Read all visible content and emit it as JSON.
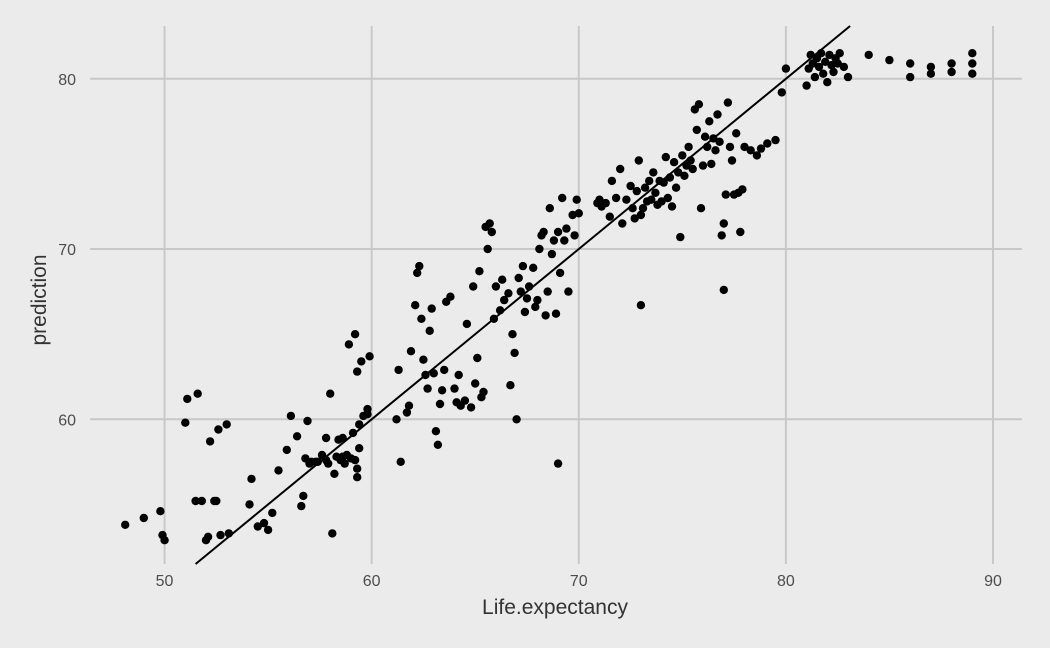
{
  "chart_data": {
    "type": "scatter",
    "xlabel": "Life.expectancy",
    "ylabel": "prediction",
    "xlim": [
      46.4,
      91.4
    ],
    "ylim": [
      51.5,
      83.1
    ],
    "xticks": [
      50,
      60,
      70,
      80,
      90
    ],
    "yticks": [
      60,
      70,
      80
    ],
    "grid": true,
    "reference_line": {
      "slope": 1,
      "intercept": 0
    },
    "colors": {
      "background": "#ebebeb",
      "grid": "#c8c8c8",
      "points": "#000000",
      "line": "#000000"
    },
    "points": [
      [
        48.1,
        53.8
      ],
      [
        49.0,
        54.2
      ],
      [
        49.8,
        54.6
      ],
      [
        49.9,
        53.2
      ],
      [
        50.0,
        52.9
      ],
      [
        51.0,
        59.8
      ],
      [
        51.1,
        61.2
      ],
      [
        51.5,
        55.2
      ],
      [
        51.6,
        61.5
      ],
      [
        51.8,
        55.2
      ],
      [
        52.0,
        52.9
      ],
      [
        52.1,
        53.1
      ],
      [
        52.2,
        58.7
      ],
      [
        52.4,
        55.2
      ],
      [
        52.5,
        55.2
      ],
      [
        52.6,
        59.4
      ],
      [
        52.7,
        53.2
      ],
      [
        53.0,
        59.7
      ],
      [
        53.1,
        53.3
      ],
      [
        54.1,
        55.0
      ],
      [
        54.2,
        56.5
      ],
      [
        54.5,
        53.7
      ],
      [
        54.8,
        53.9
      ],
      [
        55.0,
        53.5
      ],
      [
        55.2,
        54.5
      ],
      [
        55.5,
        57.0
      ],
      [
        55.9,
        58.2
      ],
      [
        56.1,
        60.2
      ],
      [
        56.4,
        59.0
      ],
      [
        56.6,
        54.9
      ],
      [
        56.7,
        55.5
      ],
      [
        56.8,
        57.7
      ],
      [
        56.9,
        59.9
      ],
      [
        57.0,
        57.4
      ],
      [
        57.1,
        57.5
      ],
      [
        57.3,
        57.5
      ],
      [
        57.4,
        57.5
      ],
      [
        57.6,
        57.9
      ],
      [
        57.8,
        58.9
      ],
      [
        57.8,
        57.6
      ],
      [
        57.9,
        57.4
      ],
      [
        58.0,
        61.5
      ],
      [
        58.1,
        53.3
      ],
      [
        58.2,
        56.8
      ],
      [
        58.3,
        57.8
      ],
      [
        58.4,
        58.8
      ],
      [
        58.5,
        57.6
      ],
      [
        58.6,
        57.8
      ],
      [
        58.6,
        58.9
      ],
      [
        58.7,
        57.4
      ],
      [
        58.8,
        57.9
      ],
      [
        58.9,
        64.4
      ],
      [
        59.0,
        57.7
      ],
      [
        59.1,
        59.2
      ],
      [
        59.2,
        65.0
      ],
      [
        59.2,
        57.6
      ],
      [
        59.3,
        57.1
      ],
      [
        59.3,
        56.6
      ],
      [
        59.4,
        59.7
      ],
      [
        59.4,
        58.3
      ],
      [
        59.5,
        63.4
      ],
      [
        59.6,
        60.2
      ],
      [
        59.8,
        60.6
      ],
      [
        59.9,
        63.7
      ],
      [
        59.3,
        62.8
      ],
      [
        59.8,
        60.3
      ],
      [
        61.2,
        60.0
      ],
      [
        61.3,
        62.9
      ],
      [
        61.4,
        57.5
      ],
      [
        61.7,
        60.4
      ],
      [
        61.8,
        60.8
      ],
      [
        61.9,
        64.0
      ],
      [
        62.1,
        66.7
      ],
      [
        62.2,
        68.6
      ],
      [
        62.3,
        69.0
      ],
      [
        62.4,
        65.9
      ],
      [
        62.5,
        63.5
      ],
      [
        62.6,
        62.6
      ],
      [
        62.7,
        61.8
      ],
      [
        62.8,
        65.2
      ],
      [
        62.9,
        66.5
      ],
      [
        63.0,
        62.7
      ],
      [
        63.1,
        59.3
      ],
      [
        63.2,
        58.5
      ],
      [
        63.3,
        60.9
      ],
      [
        63.4,
        61.7
      ],
      [
        63.5,
        62.9
      ],
      [
        63.6,
        66.9
      ],
      [
        63.8,
        67.2
      ],
      [
        64.0,
        61.8
      ],
      [
        64.1,
        61.0
      ],
      [
        64.2,
        62.6
      ],
      [
        64.3,
        60.8
      ],
      [
        64.5,
        61.1
      ],
      [
        64.6,
        65.6
      ],
      [
        64.8,
        60.7
      ],
      [
        64.9,
        67.8
      ],
      [
        65.0,
        62.1
      ],
      [
        65.1,
        63.6
      ],
      [
        65.2,
        68.7
      ],
      [
        65.3,
        61.3
      ],
      [
        65.4,
        61.6
      ],
      [
        65.5,
        71.3
      ],
      [
        65.6,
        70.0
      ],
      [
        65.7,
        71.5
      ],
      [
        65.8,
        71.0
      ],
      [
        65.9,
        65.9
      ],
      [
        66.0,
        67.8
      ],
      [
        66.2,
        66.4
      ],
      [
        66.3,
        68.2
      ],
      [
        66.4,
        67.0
      ],
      [
        66.6,
        67.4
      ],
      [
        66.7,
        62.0
      ],
      [
        66.8,
        65.0
      ],
      [
        66.9,
        63.9
      ],
      [
        67.0,
        60.0
      ],
      [
        67.1,
        68.3
      ],
      [
        67.2,
        67.5
      ],
      [
        67.3,
        69.0
      ],
      [
        67.4,
        66.3
      ],
      [
        67.5,
        67.1
      ],
      [
        67.6,
        67.8
      ],
      [
        67.8,
        68.9
      ],
      [
        67.9,
        66.6
      ],
      [
        68.0,
        67.0
      ],
      [
        68.1,
        70.0
      ],
      [
        68.2,
        70.8
      ],
      [
        68.3,
        71.0
      ],
      [
        68.4,
        66.1
      ],
      [
        68.5,
        67.5
      ],
      [
        68.6,
        72.4
      ],
      [
        68.7,
        69.7
      ],
      [
        68.8,
        70.5
      ],
      [
        68.9,
        66.2
      ],
      [
        69.0,
        71.0
      ],
      [
        69.1,
        68.6
      ],
      [
        69.2,
        73.0
      ],
      [
        69.3,
        70.5
      ],
      [
        69.4,
        71.2
      ],
      [
        69.5,
        67.5
      ],
      [
        69.7,
        72.0
      ],
      [
        69.8,
        70.8
      ],
      [
        69.9,
        72.9
      ],
      [
        70.0,
        72.1
      ],
      [
        69.0,
        57.4
      ],
      [
        70.9,
        72.7
      ],
      [
        71.0,
        72.9
      ],
      [
        71.1,
        72.5
      ],
      [
        71.3,
        72.7
      ],
      [
        71.5,
        71.9
      ],
      [
        71.6,
        74.0
      ],
      [
        71.8,
        73.0
      ],
      [
        72.0,
        74.7
      ],
      [
        72.1,
        71.5
      ],
      [
        72.3,
        72.9
      ],
      [
        72.5,
        73.7
      ],
      [
        72.6,
        72.4
      ],
      [
        72.7,
        71.8
      ],
      [
        72.8,
        73.4
      ],
      [
        72.9,
        75.2
      ],
      [
        73.0,
        72.0
      ],
      [
        73.0,
        66.7
      ],
      [
        73.1,
        72.4
      ],
      [
        73.2,
        73.6
      ],
      [
        73.3,
        72.8
      ],
      [
        73.4,
        74.0
      ],
      [
        73.5,
        72.9
      ],
      [
        73.6,
        74.5
      ],
      [
        73.7,
        73.3
      ],
      [
        73.8,
        72.6
      ],
      [
        73.9,
        74.0
      ],
      [
        74.0,
        72.8
      ],
      [
        74.1,
        73.9
      ],
      [
        74.2,
        75.4
      ],
      [
        74.3,
        73.0
      ],
      [
        74.4,
        74.2
      ],
      [
        74.5,
        72.5
      ],
      [
        74.6,
        75.1
      ],
      [
        74.7,
        73.6
      ],
      [
        74.8,
        74.5
      ],
      [
        74.9,
        70.7
      ],
      [
        75.0,
        75.5
      ],
      [
        75.1,
        74.3
      ],
      [
        75.2,
        74.9
      ],
      [
        75.3,
        76.0
      ],
      [
        75.4,
        75.2
      ],
      [
        75.5,
        74.7
      ],
      [
        75.6,
        78.2
      ],
      [
        75.7,
        77.0
      ],
      [
        75.8,
        78.5
      ],
      [
        75.9,
        72.4
      ],
      [
        76.0,
        74.9
      ],
      [
        76.1,
        76.6
      ],
      [
        76.2,
        76.0
      ],
      [
        76.3,
        77.5
      ],
      [
        76.4,
        75.0
      ],
      [
        76.5,
        76.5
      ],
      [
        76.6,
        75.8
      ],
      [
        76.7,
        77.9
      ],
      [
        76.8,
        76.3
      ],
      [
        76.9,
        70.8
      ],
      [
        77.0,
        67.6
      ],
      [
        77.0,
        71.5
      ],
      [
        77.1,
        73.2
      ],
      [
        77.2,
        78.6
      ],
      [
        77.3,
        76.0
      ],
      [
        77.4,
        75.2
      ],
      [
        77.5,
        73.2
      ],
      [
        77.6,
        76.8
      ],
      [
        77.7,
        73.3
      ],
      [
        77.8,
        71.0
      ],
      [
        77.9,
        73.5
      ],
      [
        78.0,
        76.0
      ],
      [
        78.3,
        75.8
      ],
      [
        78.6,
        75.5
      ],
      [
        78.8,
        75.9
      ],
      [
        79.1,
        76.2
      ],
      [
        79.5,
        76.4
      ],
      [
        79.8,
        79.2
      ],
      [
        80.0,
        80.6
      ],
      [
        81.0,
        79.6
      ],
      [
        81.1,
        80.6
      ],
      [
        81.2,
        81.4
      ],
      [
        81.3,
        80.9
      ],
      [
        81.4,
        80.1
      ],
      [
        81.5,
        81.2
      ],
      [
        81.6,
        80.7
      ],
      [
        81.7,
        81.5
      ],
      [
        81.8,
        80.3
      ],
      [
        81.9,
        81.0
      ],
      [
        82.0,
        79.8
      ],
      [
        82.1,
        81.4
      ],
      [
        82.2,
        80.8
      ],
      [
        82.3,
        80.4
      ],
      [
        82.4,
        81.2
      ],
      [
        82.5,
        80.9
      ],
      [
        82.6,
        81.5
      ],
      [
        82.8,
        80.7
      ],
      [
        83.0,
        80.1
      ],
      [
        84.0,
        81.4
      ],
      [
        85.0,
        81.1
      ],
      [
        86.0,
        80.9
      ],
      [
        86.0,
        80.1
      ],
      [
        87.0,
        80.7
      ],
      [
        87.0,
        80.3
      ],
      [
        88.0,
        80.9
      ],
      [
        88.0,
        80.4
      ],
      [
        89.0,
        81.5
      ],
      [
        89.0,
        80.9
      ],
      [
        89.0,
        80.3
      ]
    ]
  }
}
